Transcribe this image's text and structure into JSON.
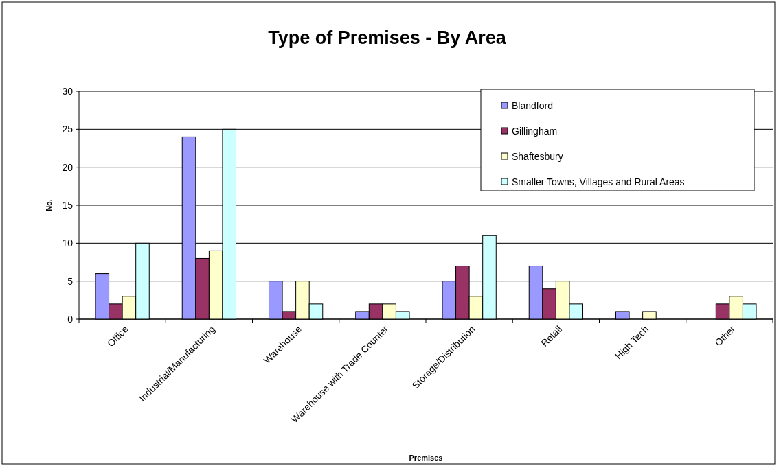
{
  "chart_data": {
    "type": "bar",
    "title": "Type of Premises - By Area",
    "xlabel": "Premises",
    "ylabel": "No.",
    "categories": [
      "Office",
      "Industrial/Manufacturing",
      "Warehouse",
      "Warehouse with Trade Counter",
      "Storage/Distribution",
      "Retail",
      "High Tech",
      "Other"
    ],
    "series": [
      {
        "name": "Blandford",
        "color": "#9999ff",
        "values": [
          6,
          24,
          5,
          1,
          5,
          7,
          1,
          0
        ]
      },
      {
        "name": "Gillingham",
        "color": "#993366",
        "values": [
          2,
          8,
          1,
          2,
          7,
          4,
          0,
          2
        ]
      },
      {
        "name": "Shaftesbury",
        "color": "#ffffcc",
        "values": [
          3,
          9,
          5,
          2,
          3,
          5,
          1,
          3
        ]
      },
      {
        "name": "Smaller Towns, Villages and Rural Areas",
        "color": "#ccffff",
        "values": [
          10,
          25,
          2,
          1,
          11,
          2,
          0,
          2
        ]
      }
    ],
    "ylim": [
      0,
      30
    ],
    "yticks": [
      0,
      5,
      10,
      15,
      20,
      25,
      30
    ],
    "grid": "y",
    "legend": "top right"
  }
}
